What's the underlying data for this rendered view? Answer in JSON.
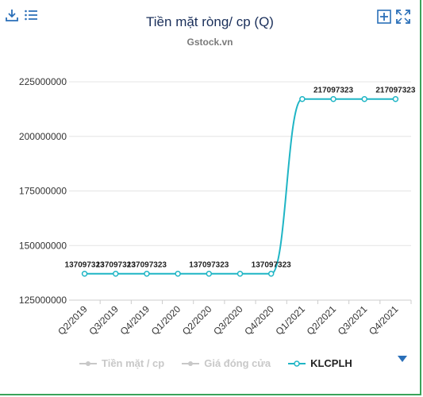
{
  "title": "Tiền mặt ròng/ cp (Q)",
  "subtitle": "Gstock.vn",
  "colors": {
    "series": "#1fb5c5",
    "title": "#1a2f5a",
    "toolbar": "#2a6fb8",
    "legend_off": "#c8c8c8"
  },
  "toolbar": {
    "left": [
      "download-icon",
      "menu-icon"
    ],
    "right": [
      "add-icon",
      "fullscreen-icon"
    ]
  },
  "legend": [
    {
      "label": "Tiền mặt / cp",
      "active": false
    },
    {
      "label": "Giá đóng cửa",
      "active": false
    },
    {
      "label": "KLCPLH",
      "active": true
    }
  ],
  "chart_data": {
    "type": "line",
    "categories": [
      "Q2/2019",
      "Q3/2019",
      "Q4/2019",
      "Q1/2020",
      "Q2/2020",
      "Q3/2020",
      "Q4/2020",
      "Q1/2021",
      "Q2/2021",
      "Q3/2021",
      "Q4/2021"
    ],
    "series": [
      {
        "name": "KLCPLH",
        "values": [
          137097323,
          137097323,
          137097323,
          137097323,
          137097323,
          137097323,
          137097323,
          217097323,
          217097323,
          217097323,
          217097323
        ]
      }
    ],
    "data_labels": [
      "137097323",
      "137097323",
      "137097323",
      "",
      "137097323",
      "",
      "137097323",
      "",
      "217097323",
      "",
      "217097323"
    ],
    "yticks": [
      125000000,
      150000000,
      175000000,
      200000000,
      225000000
    ],
    "ytick_labels": [
      "125000000",
      "150000000",
      "175000000",
      "200000000",
      "225000000"
    ],
    "ylim": [
      125000000,
      225000000
    ],
    "grid": true,
    "legend_position": "bottom"
  }
}
